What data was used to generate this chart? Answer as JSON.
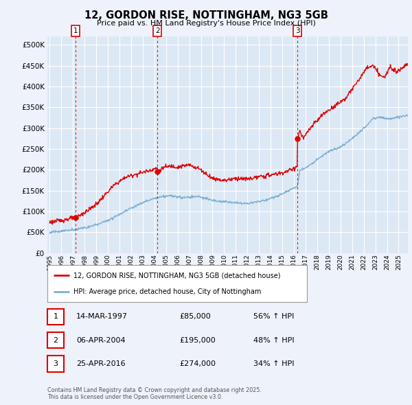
{
  "title": "12, GORDON RISE, NOTTINGHAM, NG3 5GB",
  "subtitle": "Price paid vs. HM Land Registry's House Price Index (HPI)",
  "background_color": "#eef2fa",
  "plot_background": "#dde8f5",
  "grid_color": "#ffffff",
  "red_line_color": "#dd0000",
  "blue_line_color": "#7ab0d4",
  "ylim": [
    0,
    520000
  ],
  "yticks": [
    0,
    50000,
    100000,
    150000,
    200000,
    250000,
    300000,
    350000,
    400000,
    450000,
    500000
  ],
  "xlim_start": 1994.8,
  "xlim_end": 2025.8,
  "sale_dates": [
    1997.2,
    2004.27,
    2016.31
  ],
  "sale_prices": [
    85000,
    195000,
    274000
  ],
  "sale_labels": [
    "1",
    "2",
    "3"
  ],
  "legend_red_label": "12, GORDON RISE, NOTTINGHAM, NG3 5GB (detached house)",
  "legend_blue_label": "HPI: Average price, detached house, City of Nottingham",
  "table_rows": [
    {
      "num": "1",
      "date": "14-MAR-1997",
      "price": "£85,000",
      "hpi": "56% ↑ HPI"
    },
    {
      "num": "2",
      "date": "06-APR-2004",
      "price": "£195,000",
      "hpi": "48% ↑ HPI"
    },
    {
      "num": "3",
      "date": "25-APR-2016",
      "price": "£274,000",
      "hpi": "34% ↑ HPI"
    }
  ],
  "footnote": "Contains HM Land Registry data © Crown copyright and database right 2025.\nThis data is licensed under the Open Government Licence v3.0.",
  "xtick_years": [
    1995,
    1996,
    1997,
    1998,
    1999,
    2000,
    2001,
    2002,
    2003,
    2004,
    2005,
    2006,
    2007,
    2008,
    2009,
    2010,
    2011,
    2012,
    2013,
    2014,
    2015,
    2016,
    2017,
    2018,
    2019,
    2020,
    2021,
    2022,
    2023,
    2024,
    2025
  ]
}
